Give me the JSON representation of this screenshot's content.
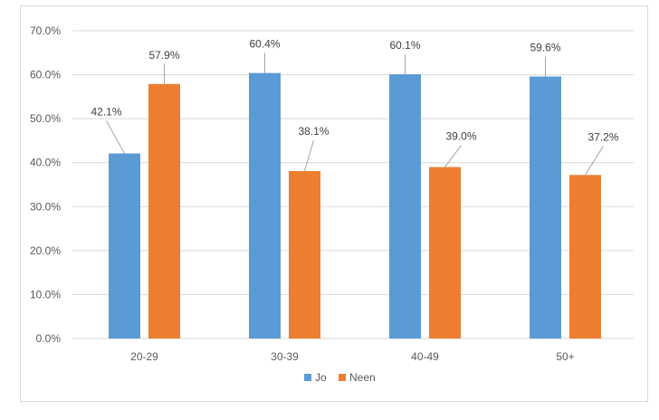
{
  "chart_data": {
    "type": "bar",
    "title": "",
    "xlabel": "",
    "ylabel": "",
    "categories": [
      "20-29",
      "30-39",
      "40-49",
      "50+"
    ],
    "series": [
      {
        "name": "Jo",
        "color": "#5b9bd5",
        "values": [
          42.1,
          60.4,
          60.1,
          59.6
        ],
        "labels": [
          "42.1%",
          "60.4%",
          "60.1%",
          "59.6%"
        ]
      },
      {
        "name": "Neen",
        "color": "#ed7d31",
        "values": [
          57.9,
          38.1,
          39.0,
          37.2
        ],
        "labels": [
          "57.9%",
          "38.1%",
          "39.0%",
          "37.2%"
        ]
      }
    ],
    "ylim": [
      0,
      70
    ],
    "yticks": [
      "0.0%",
      "10.0%",
      "20.0%",
      "30.0%",
      "40.0%",
      "50.0%",
      "60.0%",
      "70.0%"
    ],
    "grid": true,
    "legend_position": "bottom"
  }
}
